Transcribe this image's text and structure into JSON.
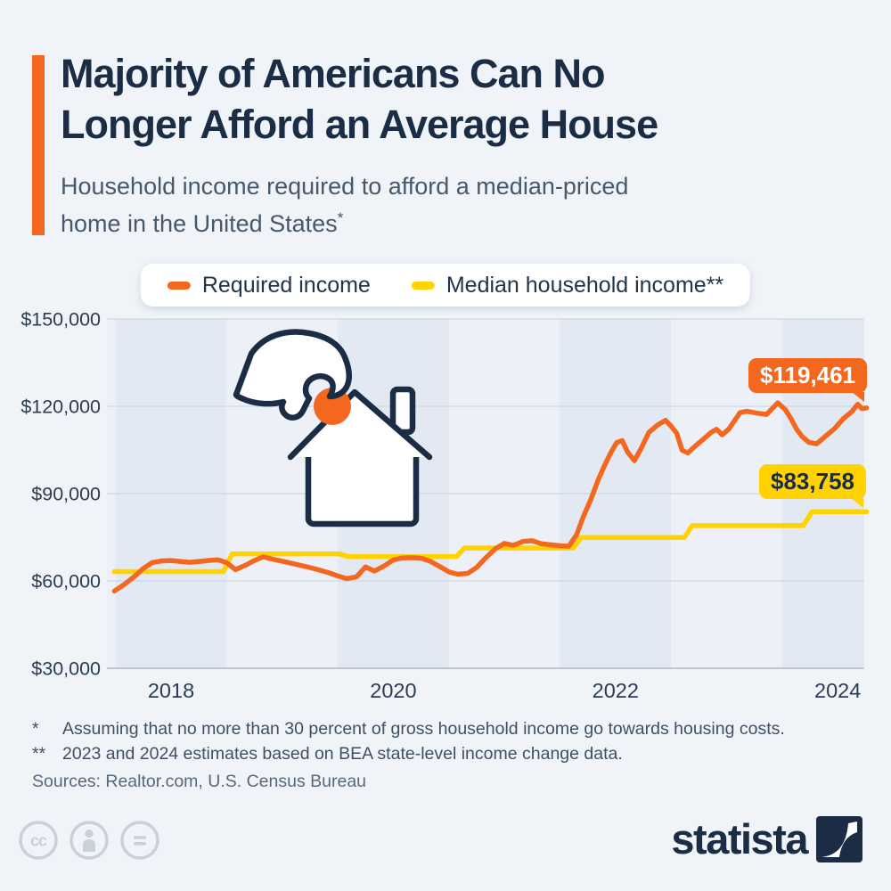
{
  "header": {
    "title_line1": "Majority of Americans Can No",
    "title_line2": "Longer Afford an Average House",
    "subtitle_line1": "Household income required to afford a median-priced",
    "subtitle_line2": "home in the United States",
    "subtitle_footnote_marker": "*"
  },
  "legend": {
    "items": [
      {
        "label": "Required income",
        "color": "#F3671E"
      },
      {
        "label": "Median household income**",
        "color": "#FFD200"
      }
    ]
  },
  "chart_data": {
    "type": "line",
    "title": "Household income required to afford a median-priced home in the United States",
    "unit": "USD per year",
    "x_axis": {
      "ticks": [
        2018,
        2020,
        2022,
        2024
      ],
      "range": [
        2017.45,
        2024.3
      ],
      "gridlines": false
    },
    "y_axis": {
      "tick_values": [
        150000,
        120000,
        90000,
        60000,
        30000
      ],
      "tick_labels": [
        "$150,000",
        "$120,000",
        "$90,000",
        "$60,000",
        "$30,000"
      ],
      "range": [
        30000,
        150000
      ]
    },
    "plot": {
      "band_years": [
        2018,
        2020,
        2022,
        2024
      ],
      "legend_position": "top-center"
    },
    "series": [
      {
        "name": "Required income",
        "color": "#F3671E",
        "end_label": "$119,461",
        "end_value": 119461,
        "points": [
          [
            2017.49,
            56500
          ],
          [
            2017.58,
            58800
          ],
          [
            2017.67,
            61500
          ],
          [
            2017.75,
            64300
          ],
          [
            2017.83,
            66300
          ],
          [
            2017.92,
            66900
          ],
          [
            2018.0,
            67000
          ],
          [
            2018.08,
            66700
          ],
          [
            2018.17,
            66400
          ],
          [
            2018.25,
            66700
          ],
          [
            2018.33,
            67000
          ],
          [
            2018.42,
            67300
          ],
          [
            2018.5,
            66300
          ],
          [
            2018.58,
            63900
          ],
          [
            2018.67,
            65400
          ],
          [
            2018.75,
            67000
          ],
          [
            2018.83,
            68300
          ],
          [
            2018.92,
            67400
          ],
          [
            2019.0,
            66800
          ],
          [
            2019.08,
            66100
          ],
          [
            2019.17,
            65300
          ],
          [
            2019.25,
            64600
          ],
          [
            2019.33,
            63800
          ],
          [
            2019.42,
            62800
          ],
          [
            2019.5,
            61700
          ],
          [
            2019.58,
            60800
          ],
          [
            2019.67,
            61400
          ],
          [
            2019.75,
            64800
          ],
          [
            2019.83,
            63400
          ],
          [
            2019.92,
            65200
          ],
          [
            2020.0,
            67200
          ],
          [
            2020.08,
            67900
          ],
          [
            2020.17,
            68000
          ],
          [
            2020.25,
            67800
          ],
          [
            2020.33,
            66800
          ],
          [
            2020.42,
            64900
          ],
          [
            2020.5,
            63100
          ],
          [
            2020.58,
            62300
          ],
          [
            2020.67,
            62600
          ],
          [
            2020.75,
            64600
          ],
          [
            2020.83,
            67900
          ],
          [
            2020.92,
            71100
          ],
          [
            2021.0,
            72900
          ],
          [
            2021.08,
            72200
          ],
          [
            2021.17,
            73600
          ],
          [
            2021.25,
            73800
          ],
          [
            2021.33,
            72800
          ],
          [
            2021.42,
            72400
          ],
          [
            2021.5,
            72100
          ],
          [
            2021.58,
            71900
          ],
          [
            2021.65,
            75900
          ],
          [
            2021.71,
            82000
          ],
          [
            2021.78,
            88200
          ],
          [
            2021.85,
            95300
          ],
          [
            2021.9,
            99500
          ],
          [
            2021.95,
            103500
          ],
          [
            2022.01,
            107500
          ],
          [
            2022.06,
            108200
          ],
          [
            2022.11,
            104200
          ],
          [
            2022.17,
            101300
          ],
          [
            2022.23,
            105500
          ],
          [
            2022.3,
            111000
          ],
          [
            2022.38,
            113600
          ],
          [
            2022.45,
            115200
          ],
          [
            2022.5,
            113200
          ],
          [
            2022.55,
            110800
          ],
          [
            2022.6,
            104900
          ],
          [
            2022.65,
            104000
          ],
          [
            2022.72,
            106400
          ],
          [
            2022.8,
            109000
          ],
          [
            2022.86,
            111000
          ],
          [
            2022.91,
            112100
          ],
          [
            2022.96,
            110200
          ],
          [
            2023.02,
            112200
          ],
          [
            2023.12,
            117800
          ],
          [
            2023.18,
            118300
          ],
          [
            2023.28,
            117600
          ],
          [
            2023.36,
            117200
          ],
          [
            2023.46,
            121200
          ],
          [
            2023.53,
            118800
          ],
          [
            2023.58,
            115700
          ],
          [
            2023.63,
            112100
          ],
          [
            2023.68,
            109600
          ],
          [
            2023.74,
            107600
          ],
          [
            2023.81,
            107100
          ],
          [
            2023.89,
            109700
          ],
          [
            2023.97,
            112300
          ],
          [
            2024.05,
            115700
          ],
          [
            2024.13,
            118300
          ],
          [
            2024.18,
            120700
          ],
          [
            2024.22,
            119200
          ],
          [
            2024.26,
            119461
          ]
        ]
      },
      {
        "name": "Median household income",
        "color": "#FFD200",
        "end_label": "$83,758",
        "end_value": 83758,
        "points": [
          [
            2017.49,
            63200
          ],
          [
            2018.47,
            63200
          ],
          [
            2018.55,
            69300
          ],
          [
            2019.52,
            69300
          ],
          [
            2019.59,
            68400
          ],
          [
            2020.57,
            68400
          ],
          [
            2020.64,
            71300
          ],
          [
            2021.62,
            71300
          ],
          [
            2021.69,
            74900
          ],
          [
            2022.62,
            74900
          ],
          [
            2022.69,
            79000
          ],
          [
            2023.69,
            79000
          ],
          [
            2023.77,
            83758
          ],
          [
            2024.26,
            83758
          ]
        ]
      }
    ]
  },
  "footnotes": {
    "items": [
      {
        "marker": "*",
        "text": "Assuming that no more than 30 percent of gross household income go towards housing costs."
      },
      {
        "marker": "**",
        "text": "2023 and 2024 estimates based on BEA state-level income change data."
      }
    ]
  },
  "sources": "Sources: Realtor.com, U.S. Census Bureau",
  "branding": {
    "wordmark": "statista"
  },
  "colors": {
    "accent_orange": "#F3671E",
    "accent_yellow": "#FFD200",
    "navy": "#1B2D44",
    "subtitle_gray": "#46586B",
    "axis_label": "#2B3C52",
    "footnote": "#3E5064",
    "sources": "#56687B",
    "page_bg": "#F0F4F8",
    "plot_bg": "#EDF1F7",
    "plot_band": "#E3E9F2",
    "gridline": "#C9D1DB",
    "axis_line": "#AEB8C5",
    "legend_bg": "#FFFFFF",
    "cc_gray": "#C7D0DB"
  }
}
